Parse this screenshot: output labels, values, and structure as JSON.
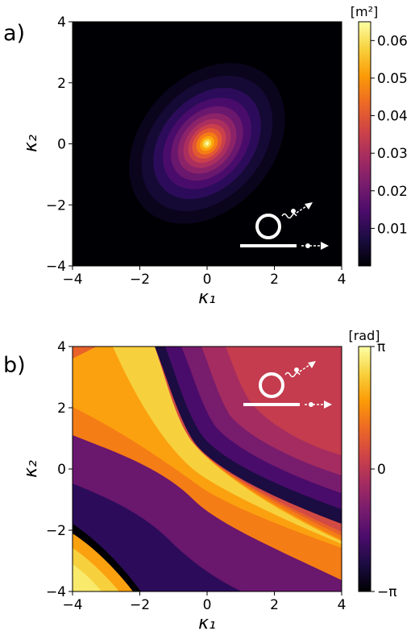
{
  "colors": {
    "cmap": [
      "#000004",
      "#1b0c41",
      "#4a0c6b",
      "#781c6d",
      "#a52c60",
      "#cf4446",
      "#ed6925",
      "#fb9b06",
      "#f7d13d",
      "#fcffa4"
    ]
  },
  "chart_data": [
    {
      "type": "heatmap",
      "panel_label": "a)",
      "xlabel": "κ₁",
      "ylabel": "κ₂",
      "xlim": [
        -4,
        4
      ],
      "ylim": [
        -4,
        4
      ],
      "xticks": [
        "−4",
        "−2",
        "0",
        "2",
        "4"
      ],
      "yticks": [
        "−4",
        "−2",
        "0",
        "2",
        "4"
      ],
      "colorbar": {
        "unit": "[m²]",
        "range": [
          0,
          0.065
        ],
        "ticks": [
          {
            "value": 0.01,
            "label": "0.01"
          },
          {
            "value": 0.02,
            "label": "0.02"
          },
          {
            "value": 0.03,
            "label": "0.03"
          },
          {
            "value": 0.04,
            "label": "0.04"
          },
          {
            "value": 0.05,
            "label": "0.05"
          },
          {
            "value": 0.06,
            "label": "0.06"
          }
        ]
      },
      "peak": {
        "x": 0,
        "y": 0,
        "value": 0.064
      },
      "icon": "ring-emission-icon"
    },
    {
      "type": "heatmap",
      "panel_label": "b)",
      "xlabel": "κ₁",
      "ylabel": "κ₂",
      "xlim": [
        -4,
        4
      ],
      "ylim": [
        -4,
        4
      ],
      "xticks": [
        "−4",
        "−2",
        "0",
        "2",
        "4"
      ],
      "yticks": [
        "−4",
        "−2",
        "0",
        "2",
        "4"
      ],
      "colorbar": {
        "unit": "[rad]",
        "range": [
          -3.1416,
          3.1416
        ],
        "ticks": [
          {
            "value": 3.1416,
            "label": "π"
          },
          {
            "value": 0,
            "label": "0"
          },
          {
            "value": -3.1416,
            "label": "−π"
          }
        ]
      },
      "icon": "ring-emission-icon"
    }
  ]
}
